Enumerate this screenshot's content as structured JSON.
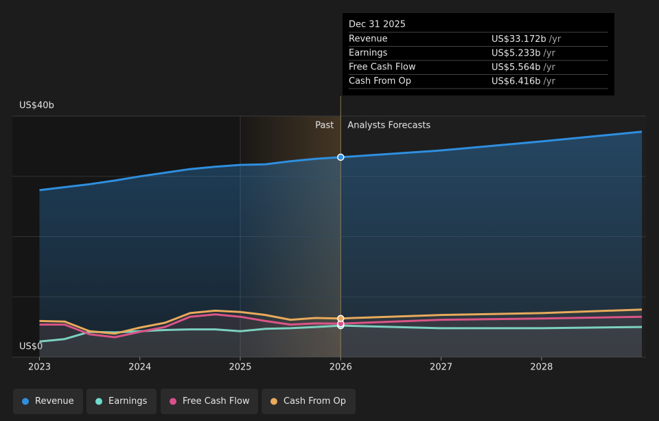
{
  "chart_data": {
    "type": "line",
    "x": [
      2023,
      2023.25,
      2023.5,
      2023.75,
      2024,
      2024.25,
      2024.5,
      2024.75,
      2025,
      2025.25,
      2025.5,
      2025.75,
      2026,
      2027,
      2028,
      2029
    ],
    "xlim": [
      2022.73,
      2029.04
    ],
    "xticks": [
      2023,
      2024,
      2025,
      2026,
      2027,
      2028
    ],
    "ylim": [
      0,
      40
    ],
    "yticks": [
      {
        "value": 0,
        "label": "US$0"
      },
      {
        "value": 40,
        "label": "US$40b"
      }
    ],
    "ygrid": [
      10,
      20,
      30
    ],
    "forecast_start": 2026,
    "highlight_range": [
      2025,
      2026
    ],
    "past_label": "Past",
    "forecast_label": "Analysts Forecasts",
    "tooltip": {
      "x": 2026,
      "date": "Dec 31 2025",
      "unit": "/yr"
    },
    "series": [
      {
        "name": "Revenue",
        "color": "#2f8fdf",
        "tooltip_label": "US$33.172b",
        "values": [
          27.7,
          28.2,
          28.7,
          29.3,
          30.0,
          30.6,
          31.2,
          31.6,
          31.9,
          32.0,
          32.5,
          32.9,
          33.172,
          34.3,
          35.8,
          37.4
        ]
      },
      {
        "name": "Earnings",
        "color": "#6fdccb",
        "tooltip_label": "US$5.233b",
        "values": [
          2.6,
          3.0,
          4.2,
          4.1,
          4.3,
          4.5,
          4.6,
          4.6,
          4.3,
          4.7,
          4.8,
          5.0,
          5.233,
          4.8,
          4.8,
          5.0
        ]
      },
      {
        "name": "Free Cash Flow",
        "color": "#d9508b",
        "tooltip_label": "US$5.564b",
        "values": [
          5.4,
          5.4,
          3.8,
          3.3,
          4.2,
          5.0,
          6.7,
          7.1,
          6.7,
          6.0,
          5.4,
          5.6,
          5.564,
          6.2,
          6.4,
          6.7
        ]
      },
      {
        "name": "Cash From Op",
        "color": "#e8aa5c",
        "tooltip_label": "US$6.416b",
        "values": [
          6.0,
          5.9,
          4.3,
          3.9,
          4.9,
          5.7,
          7.3,
          7.7,
          7.5,
          7.0,
          6.2,
          6.5,
          6.416,
          7.0,
          7.3,
          7.9
        ]
      }
    ]
  }
}
